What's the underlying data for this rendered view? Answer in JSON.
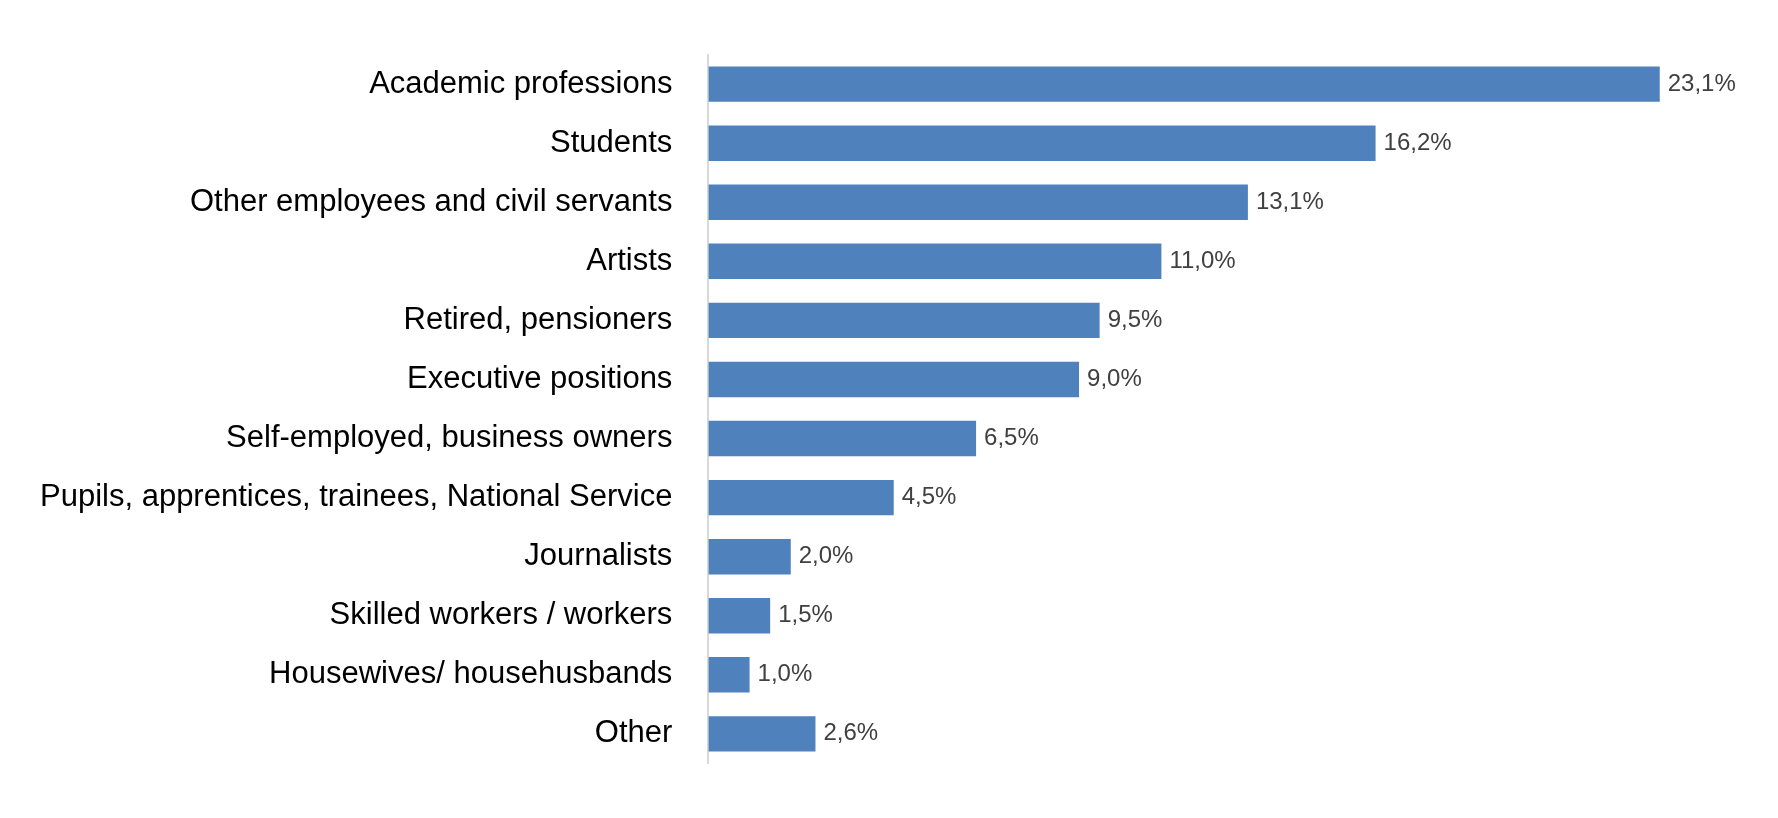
{
  "chart_data": {
    "type": "bar",
    "orientation": "horizontal",
    "categories": [
      "Academic professions",
      "Students",
      "Other employees and civil servants",
      "Artists",
      "Retired, pensioners",
      "Executive positions",
      "Self-employed, business owners",
      "Pupils, apprentices, trainees, National Service",
      "Journalists",
      "Skilled workers / workers",
      "Housewives/ househusbands",
      "Other"
    ],
    "values": [
      23.1,
      16.2,
      13.1,
      11.0,
      9.5,
      9.0,
      6.5,
      4.5,
      2.0,
      1.5,
      1.0,
      2.6
    ],
    "value_labels": [
      "23,1%",
      "16,2%",
      "13,1%",
      "11,0%",
      "9,5%",
      "9,0%",
      "6,5%",
      "4,5%",
      "2,0%",
      "1,5%",
      "1,0%",
      "2,6%"
    ],
    "color": "#4f81bd",
    "legend": false,
    "tick_labels": "y"
  }
}
